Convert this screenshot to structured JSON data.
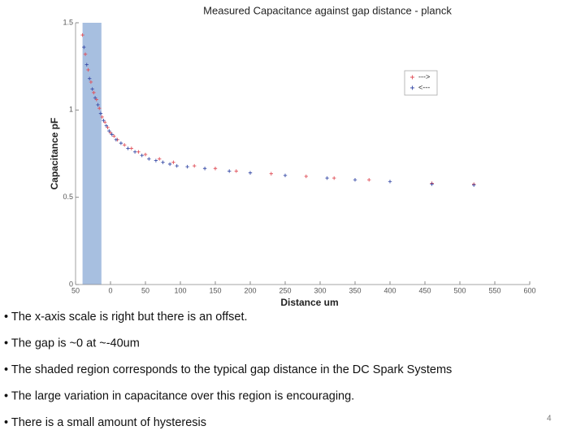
{
  "chart_data": {
    "type": "scatter",
    "title": "Measured Capacitance against gap distance - planck",
    "x_label": "Distance um",
    "y_label": "Capacitance pF",
    "xlim": [
      -50,
      600
    ],
    "ylim": [
      0,
      1.5
    ],
    "xticks": [
      {
        "value": -50,
        "label": "50"
      },
      0,
      50,
      100,
      150,
      200,
      250,
      300,
      350,
      400,
      450,
      500,
      550,
      600
    ],
    "yticks": [
      0,
      0.5,
      1,
      1.5
    ],
    "shaded_region": [
      -40,
      -13
    ],
    "shaded_color": "#a7bfe0",
    "series": [
      {
        "name": "--->",
        "color": "#e0505a",
        "x": [
          -40,
          -36,
          -32,
          -28,
          -24,
          -20,
          -16,
          -12,
          -8,
          -4,
          0,
          5,
          10,
          20,
          30,
          40,
          50,
          70,
          90,
          120,
          150,
          180,
          230,
          280,
          320,
          370,
          460,
          520
        ],
        "values": [
          1.43,
          1.32,
          1.23,
          1.16,
          1.1,
          1.06,
          1.01,
          0.96,
          0.93,
          0.9,
          0.87,
          0.85,
          0.83,
          0.8,
          0.78,
          0.76,
          0.745,
          0.72,
          0.7,
          0.68,
          0.665,
          0.65,
          0.635,
          0.62,
          0.61,
          0.6,
          0.58,
          0.575
        ]
      },
      {
        "name": "<---",
        "color": "#3b4ea8",
        "x": [
          -38,
          -34,
          -30,
          -26,
          -22,
          -18,
          -14,
          -10,
          -6,
          -2,
          2,
          8,
          15,
          25,
          35,
          45,
          55,
          65,
          75,
          85,
          95,
          110,
          135,
          170,
          200,
          250,
          310,
          350,
          400,
          460,
          520
        ],
        "values": [
          1.36,
          1.26,
          1.18,
          1.12,
          1.07,
          1.03,
          0.98,
          0.94,
          0.91,
          0.88,
          0.86,
          0.83,
          0.81,
          0.78,
          0.76,
          0.74,
          0.72,
          0.71,
          0.7,
          0.69,
          0.68,
          0.675,
          0.665,
          0.65,
          0.64,
          0.625,
          0.61,
          0.6,
          0.59,
          0.575,
          0.57
        ]
      }
    ]
  },
  "slide": {
    "bullets": [
      "• The x-axis scale is right but there is an offset.",
      "• The gap is ~0 at ~-40um",
      "• The shaded region corresponds to the typical gap distance in the DC Spark Systems",
      "• The large variation in capacitance over this region is encouraging.",
      "• There is a small amount of hysteresis"
    ],
    "page_number": "4"
  }
}
